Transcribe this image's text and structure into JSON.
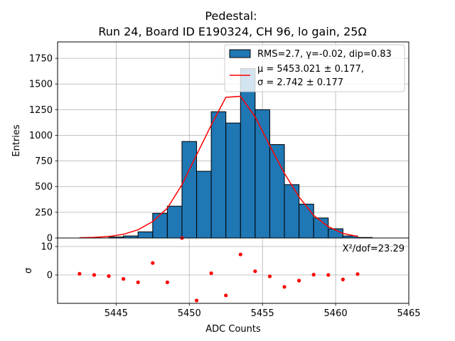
{
  "chart_data": [
    {
      "type": "bar",
      "title_line1": "Pedestal:",
      "title_line2": "Run 24, Board ID E190324, CH 96, lo gain, 25Ω",
      "xlabel": "",
      "ylabel": "Entries",
      "xlim": [
        5441.0,
        5465.0
      ],
      "ylim": [
        0,
        1910
      ],
      "grid": true,
      "yticks": [
        0,
        250,
        500,
        750,
        1000,
        1250,
        1500,
        1750
      ],
      "xticks": [
        5445,
        5450,
        5455,
        5460,
        5465
      ],
      "bin_width": 1,
      "bin_edges_start": 5442.5,
      "hist_values": [
        0,
        0,
        10,
        20,
        60,
        240,
        310,
        940,
        650,
        1230,
        1120,
        1650,
        1250,
        910,
        520,
        330,
        195,
        90,
        20,
        5
      ],
      "fit_x": [
        5442.5,
        5443.5,
        5444.5,
        5445.5,
        5446.5,
        5447.5,
        5448.5,
        5449.5,
        5450.5,
        5451.5,
        5452.5,
        5453.5,
        5454.5,
        5455.5,
        5456.5,
        5457.5,
        5458.5,
        5459.5,
        5460.5,
        5461.5
      ],
      "fit_y": [
        3,
        6,
        15,
        36,
        80,
        160,
        290,
        520,
        810,
        1100,
        1370,
        1380,
        1180,
        900,
        630,
        400,
        220,
        110,
        45,
        15
      ],
      "legend": {
        "position": "top-right",
        "hist_label": "RMS=2.7, γ=-0.02, dip=0.83",
        "fit_label_line1": "μ = 5453.021 ± 0.177,",
        "fit_label_line2": "σ = 2.742 ± 0.177"
      },
      "colors": {
        "bar": "#1f77b4",
        "bar_edge": "#000000",
        "fit": "#ff0000"
      }
    },
    {
      "type": "scatter",
      "xlabel": "ADC Counts",
      "ylabel": "σ",
      "xlim": [
        5441.0,
        5465.0
      ],
      "ylim": [
        -10,
        13
      ],
      "grid": true,
      "yticks": [
        0,
        10
      ],
      "xticks": [
        5445,
        5450,
        5455,
        5460,
        5465
      ],
      "annotation": "X²/dof=23.29",
      "x": [
        5442.5,
        5443.5,
        5444.5,
        5445.5,
        5446.5,
        5447.5,
        5448.5,
        5449.5,
        5450.5,
        5451.5,
        5452.5,
        5453.5,
        5454.5,
        5455.5,
        5456.5,
        5457.5,
        5458.5,
        5459.5,
        5460.5,
        5461.5
      ],
      "y": [
        0.4,
        0.0,
        -0.4,
        -1.4,
        -2.6,
        4.2,
        -2.6,
        13.0,
        -9.0,
        0.6,
        -7.2,
        7.2,
        1.3,
        -0.5,
        -4.2,
        -2.0,
        0.1,
        0.0,
        -1.6,
        0.3
      ],
      "colors": {
        "point": "#ff0000"
      }
    }
  ]
}
